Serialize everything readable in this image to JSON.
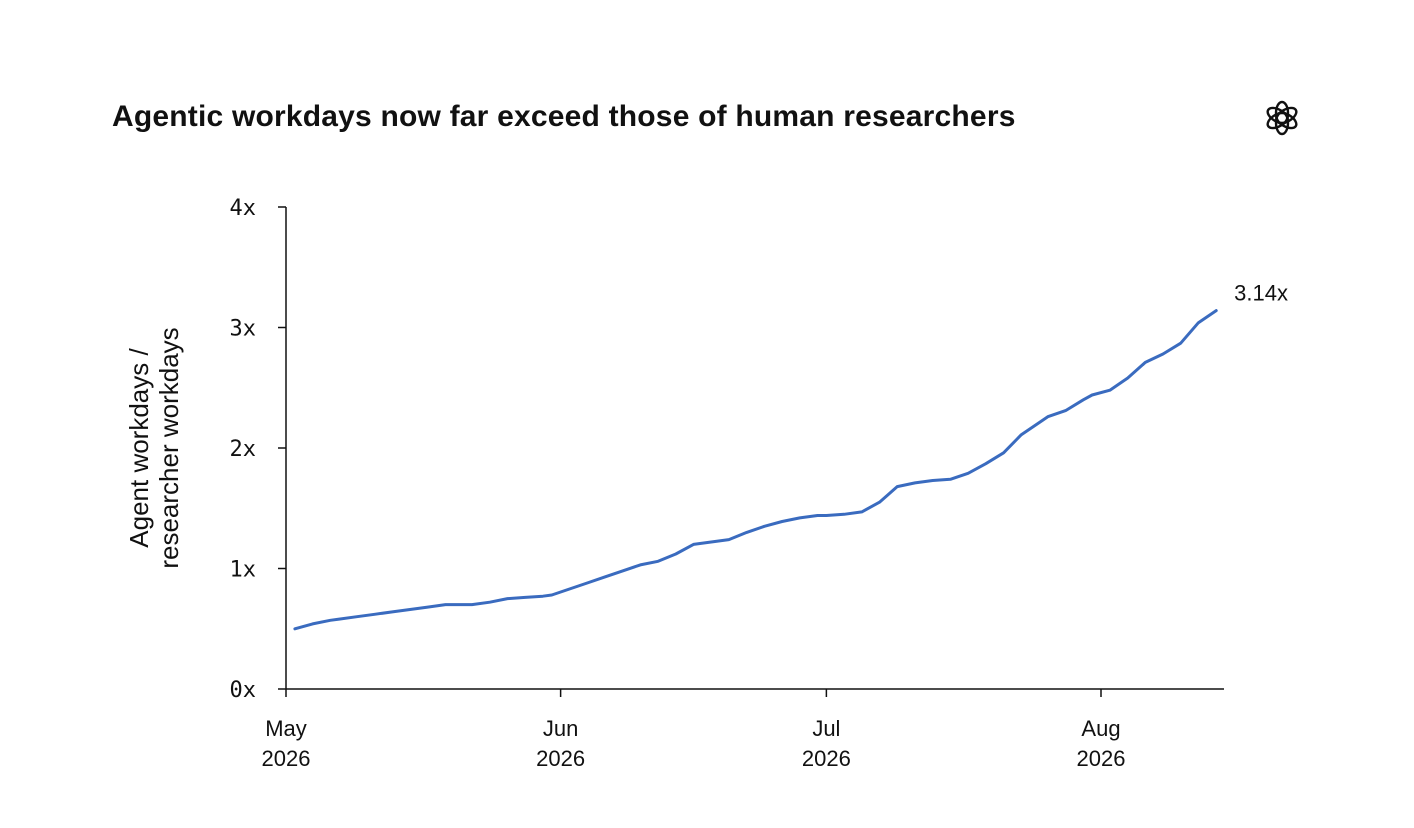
{
  "title": "Agentic workdays now far exceed those of human researchers",
  "logo_icon": "openai-logo-icon",
  "colors": {
    "line": "#3a6bbf",
    "axis": "#111111",
    "text": "#111111"
  },
  "chart_data": {
    "type": "line",
    "title": "Agentic workdays now far exceed those of human researchers",
    "xlabel": "",
    "ylabel_lines": [
      "Agent workdays /",
      "researcher workdays"
    ],
    "ylim": [
      0,
      4
    ],
    "y_ticks": [
      0,
      1,
      2,
      3,
      4
    ],
    "y_tick_labels": [
      "0x",
      "1x",
      "2x",
      "3x",
      "4x"
    ],
    "x_ticks": [
      {
        "date": "2026-05-01",
        "lines": [
          "May",
          "2026"
        ]
      },
      {
        "date": "2026-06-01",
        "lines": [
          "Jun",
          "2026"
        ]
      },
      {
        "date": "2026-07-01",
        "lines": [
          "Jul",
          "2026"
        ]
      },
      {
        "date": "2026-08-01",
        "lines": [
          "Aug",
          "2026"
        ]
      }
    ],
    "xlim": [
      "2026-05-01",
      "2026-08-15"
    ],
    "end_label": "3.14x",
    "grid": false,
    "series": [
      {
        "x": [
          "2026-05-02",
          "2026-05-04",
          "2026-05-06",
          "2026-05-07",
          "2026-05-09",
          "2026-05-11",
          "2026-05-13",
          "2026-05-15",
          "2026-05-17",
          "2026-05-19",
          "2026-05-21",
          "2026-05-22",
          "2026-05-24",
          "2026-05-26",
          "2026-05-28",
          "2026-05-30",
          "2026-05-31",
          "2026-06-02",
          "2026-06-04",
          "2026-06-06",
          "2026-06-08",
          "2026-06-10",
          "2026-06-12",
          "2026-06-14",
          "2026-06-16",
          "2026-06-18",
          "2026-06-20",
          "2026-06-22",
          "2026-06-24",
          "2026-06-26",
          "2026-06-28",
          "2026-06-30",
          "2026-07-01",
          "2026-07-03",
          "2026-07-05",
          "2026-07-07",
          "2026-07-09",
          "2026-07-11",
          "2026-07-13",
          "2026-07-15",
          "2026-07-17",
          "2026-07-19",
          "2026-07-21",
          "2026-07-23",
          "2026-07-25",
          "2026-07-26",
          "2026-07-28",
          "2026-07-30",
          "2026-07-31",
          "2026-08-02",
          "2026-08-04",
          "2026-08-06",
          "2026-08-08",
          "2026-08-10",
          "2026-08-12",
          "2026-08-14"
        ],
        "values": [
          0.5,
          0.54,
          0.57,
          0.58,
          0.6,
          0.62,
          0.64,
          0.66,
          0.68,
          0.7,
          0.7,
          0.7,
          0.72,
          0.75,
          0.76,
          0.77,
          0.78,
          0.83,
          0.88,
          0.93,
          0.98,
          1.03,
          1.06,
          1.12,
          1.2,
          1.22,
          1.24,
          1.3,
          1.35,
          1.39,
          1.42,
          1.44,
          1.44,
          1.45,
          1.47,
          1.55,
          1.68,
          1.71,
          1.73,
          1.74,
          1.79,
          1.87,
          1.96,
          2.11,
          2.21,
          2.26,
          2.31,
          2.4,
          2.44,
          2.48,
          2.58,
          2.71,
          2.78,
          2.87,
          3.04,
          3.14
        ]
      }
    ]
  }
}
